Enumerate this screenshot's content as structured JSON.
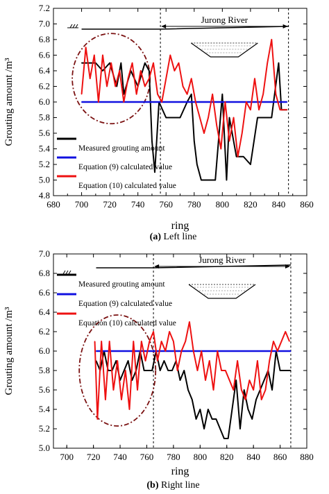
{
  "chart_data": [
    {
      "type": "line",
      "caption_letter": "(a)",
      "caption_text": " Left line",
      "xlabel": "ring",
      "ylabel": "Grouting amount /m³",
      "xlim": [
        680,
        860
      ],
      "ylim": [
        4.8,
        7.2
      ],
      "xticks": [
        "680",
        "700",
        "720",
        "740",
        "760",
        "780",
        "800",
        "820",
        "840",
        "860"
      ],
      "yticks": [
        "4.8",
        "5.0",
        "5.2",
        "5.4",
        "5.6",
        "5.8",
        "6.0",
        "6.2",
        "6.4",
        "6.6",
        "6.8",
        "7.0",
        "7.2"
      ],
      "river_label": "Jurong River",
      "river_span": [
        756,
        847
      ],
      "legend": [
        "Measured grouting amount",
        "Equation (9) calculated value",
        "Equation (10) calculated value"
      ],
      "series": [
        {
          "name": "Measured grouting amount",
          "color": "#000000",
          "x": [
            700,
            705,
            710,
            715,
            720,
            725,
            728,
            730,
            735,
            740,
            745,
            748,
            750,
            752,
            755,
            760,
            765,
            770,
            775,
            778,
            780,
            782,
            785,
            790,
            795,
            800,
            803,
            805,
            808,
            810,
            815,
            820,
            825,
            830,
            835,
            840,
            842,
            846
          ],
          "values": [
            6.5,
            6.5,
            6.5,
            6.4,
            6.5,
            6.2,
            6.5,
            6.1,
            6.4,
            6.2,
            6.5,
            6.4,
            5.5,
            5.1,
            6.0,
            5.8,
            5.8,
            5.8,
            6.0,
            6.1,
            5.5,
            5.2,
            5.0,
            5.0,
            5.0,
            6.1,
            5.0,
            5.8,
            5.5,
            5.3,
            5.3,
            5.2,
            5.8,
            5.8,
            5.8,
            6.5,
            5.9,
            5.9
          ]
        },
        {
          "name": "Equation (9) calculated value",
          "color": "#1010e0",
          "x": [
            700,
            846
          ],
          "values": [
            6.0,
            6.0
          ]
        },
        {
          "name": "Equation (10) calculated value",
          "color": "#ee1111",
          "x": [
            700,
            703,
            706,
            709,
            712,
            715,
            718,
            721,
            724,
            727,
            730,
            733,
            736,
            739,
            742,
            745,
            748,
            751,
            754,
            757,
            760,
            763,
            766,
            769,
            772,
            775,
            778,
            781,
            784,
            787,
            790,
            793,
            796,
            799,
            802,
            805,
            808,
            811,
            814,
            817,
            820,
            823,
            826,
            829,
            832,
            835,
            838,
            841,
            844,
            846
          ],
          "values": [
            6.1,
            6.7,
            6.3,
            6.6,
            6.0,
            6.6,
            6.2,
            6.5,
            6.2,
            6.4,
            6.0,
            6.3,
            6.5,
            6.1,
            6.4,
            6.2,
            6.3,
            6.5,
            6.1,
            6.0,
            6.3,
            6.6,
            6.4,
            6.5,
            6.2,
            6.1,
            6.3,
            6.0,
            5.8,
            5.6,
            5.8,
            6.1,
            5.7,
            5.4,
            6.0,
            5.5,
            5.8,
            5.3,
            5.6,
            6.0,
            5.9,
            6.3,
            5.9,
            6.1,
            6.5,
            6.8,
            6.1,
            5.9,
            5.9,
            5.9
          ]
        }
      ]
    },
    {
      "type": "line",
      "caption_letter": "(b)",
      "caption_text": " Right line",
      "xlabel": "ring",
      "ylabel": "Grouting amount /m³",
      "xlim": [
        690,
        880
      ],
      "ylim": [
        5.0,
        7.0
      ],
      "xticks": [
        "700",
        "720",
        "740",
        "760",
        "780",
        "800",
        "820",
        "840",
        "860",
        "880"
      ],
      "yticks": [
        "5.0",
        "5.2",
        "5.4",
        "5.6",
        "5.8",
        "6.0",
        "6.2",
        "6.4",
        "6.6",
        "6.8",
        "7.0"
      ],
      "river_label": "Jurong River",
      "river_span": [
        765,
        868
      ],
      "legend": [
        "Measured grouting amount",
        "Equation (9) calculated value",
        "Equation (10) calculated value"
      ],
      "series": [
        {
          "name": "Measured grouting amount",
          "color": "#000000",
          "x": [
            722,
            725,
            728,
            731,
            734,
            737,
            740,
            743,
            746,
            749,
            752,
            755,
            758,
            761,
            764,
            767,
            770,
            773,
            776,
            779,
            782,
            785,
            788,
            791,
            794,
            797,
            800,
            803,
            806,
            809,
            812,
            815,
            818,
            821,
            824,
            827,
            830,
            833,
            836,
            839,
            842,
            845,
            848,
            851,
            854,
            857,
            860,
            863,
            866,
            868
          ],
          "values": [
            5.9,
            5.8,
            6.0,
            5.8,
            5.8,
            5.9,
            5.7,
            5.8,
            5.9,
            5.7,
            5.8,
            6.0,
            5.8,
            5.8,
            5.8,
            6.0,
            5.8,
            5.9,
            5.8,
            5.8,
            5.9,
            5.7,
            5.8,
            5.6,
            5.5,
            5.3,
            5.4,
            5.2,
            5.4,
            5.3,
            5.3,
            5.2,
            5.1,
            5.1,
            5.4,
            5.7,
            5.2,
            5.6,
            5.4,
            5.3,
            5.5,
            5.6,
            5.7,
            5.8,
            5.6,
            6.0,
            5.8,
            5.8,
            5.8,
            5.8
          ]
        },
        {
          "name": "Equation (9) calculated value",
          "color": "#1010e0",
          "x": [
            722,
            868
          ],
          "values": [
            6.0,
            6.0
          ]
        },
        {
          "name": "Equation (10) calculated value",
          "color": "#ee1111",
          "x": [
            721,
            723,
            726,
            729,
            732,
            735,
            738,
            741,
            744,
            747,
            750,
            753,
            756,
            759,
            762,
            765,
            768,
            771,
            774,
            777,
            780,
            783,
            786,
            789,
            792,
            795,
            798,
            801,
            804,
            807,
            810,
            813,
            816,
            819,
            822,
            825,
            828,
            831,
            834,
            837,
            840,
            843,
            846,
            849,
            852,
            855,
            858,
            861,
            864,
            867
          ],
          "values": [
            6.1,
            5.3,
            6.1,
            5.5,
            6.1,
            5.6,
            5.9,
            5.5,
            5.8,
            5.4,
            6.1,
            5.6,
            6.1,
            5.9,
            6.1,
            6.2,
            5.9,
            6.1,
            6.0,
            6.2,
            6.1,
            5.8,
            6.0,
            6.1,
            6.3,
            6.0,
            5.8,
            6.0,
            5.7,
            5.9,
            5.6,
            6.0,
            5.8,
            5.8,
            5.7,
            5.6,
            5.9,
            5.6,
            5.5,
            5.7,
            5.6,
            5.9,
            5.5,
            5.6,
            5.9,
            6.1,
            6.0,
            6.1,
            6.2,
            6.1
          ]
        }
      ]
    }
  ]
}
